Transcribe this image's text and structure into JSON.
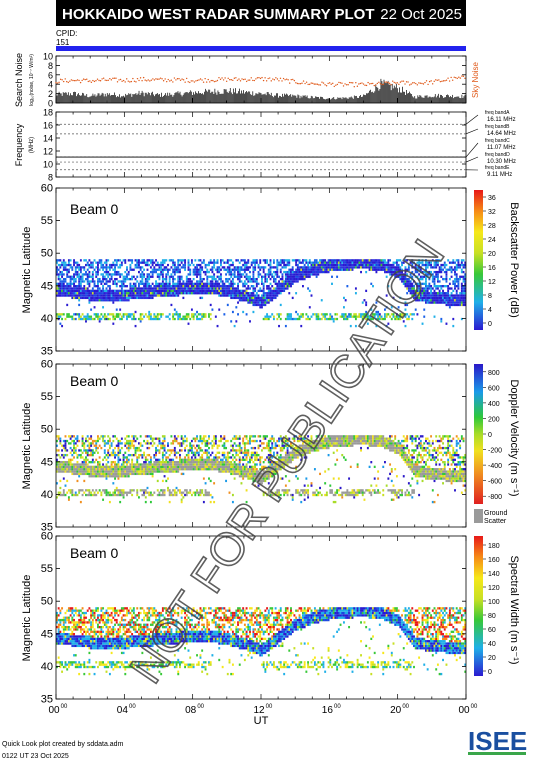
{
  "header": {
    "title": "HOKKAIDO WEST RADAR SUMMARY PLOT",
    "date": "22 Oct 2025",
    "cpid_label": "CPID:",
    "cpid_value": "151"
  },
  "footer": {
    "credit": "Quick Look plot created by sddata.adm",
    "created": "0122 UT 23 Oct 2025",
    "logo_text": "ISEE"
  },
  "watermark": "NOT FOR PUBLICATION",
  "colors": {
    "title_bar": "#000000",
    "cpid_bar": "#2222ee",
    "noise_line": "#e05a1a",
    "search_noise_fill": "#000000",
    "ground_scatter": "#9a9a9a",
    "logo_green": "#3aa64a",
    "logo_blue": "#1a4fa0"
  },
  "chart_data": [
    {
      "id": "search-noise",
      "type": "area",
      "ylabel": "Search Noise",
      "ylabel_sub": "log₁₀(noise, 10⁻⁷ W/m²)",
      "right_label": "Sky Noise",
      "ylim": [
        0,
        10
      ],
      "yticks": [
        0,
        2,
        4,
        6,
        8,
        10
      ],
      "xlim": [
        0,
        24
      ],
      "search_noise": [
        [
          0,
          1.8
        ],
        [
          1,
          2.0
        ],
        [
          2,
          1.5
        ],
        [
          3,
          1.9
        ],
        [
          4,
          1.6
        ],
        [
          5,
          2.1
        ],
        [
          6,
          1.7
        ],
        [
          7,
          1.9
        ],
        [
          8,
          2.2
        ],
        [
          9,
          2.4
        ],
        [
          10,
          2.6
        ],
        [
          11,
          2.3
        ],
        [
          12,
          2.0
        ],
        [
          13,
          1.6
        ],
        [
          14,
          1.5
        ],
        [
          15,
          1.2
        ],
        [
          16,
          1.0
        ],
        [
          17,
          1.1
        ],
        [
          18,
          1.4
        ],
        [
          19,
          4.0
        ],
        [
          20,
          3.2
        ],
        [
          21,
          1.3
        ],
        [
          22,
          1.6
        ],
        [
          23,
          1.5
        ],
        [
          24,
          1.4
        ]
      ],
      "sky_noise": [
        [
          0,
          4.6
        ],
        [
          1,
          4.8
        ],
        [
          2,
          4.7
        ],
        [
          3,
          4.9
        ],
        [
          4,
          4.8
        ],
        [
          5,
          5.0
        ],
        [
          6,
          4.9
        ],
        [
          7,
          4.9
        ],
        [
          8,
          4.8
        ],
        [
          9,
          4.9
        ],
        [
          10,
          5.0
        ],
        [
          11,
          5.0
        ],
        [
          12,
          5.1
        ],
        [
          13,
          5.0
        ],
        [
          14,
          4.5
        ],
        [
          15,
          4.1
        ],
        [
          16,
          4.0
        ],
        [
          17,
          3.9
        ],
        [
          18,
          3.9
        ],
        [
          19,
          4.0
        ],
        [
          20,
          4.3
        ],
        [
          21,
          4.2
        ],
        [
          22,
          4.4
        ],
        [
          23,
          5.0
        ],
        [
          24,
          5.4
        ]
      ]
    },
    {
      "id": "frequency",
      "type": "line",
      "ylabel": "Frequency",
      "ylabel_sub": "(MHz)",
      "ylim": [
        8,
        18
      ],
      "yticks": [
        8,
        10,
        12,
        14,
        16,
        18
      ],
      "xlim": [
        0,
        24
      ],
      "bands": [
        {
          "name": "freq bandA",
          "value": 16.11,
          "label": "16.11 MHz"
        },
        {
          "name": "freq bandB",
          "value": 14.64,
          "label": "14.64 MHz"
        },
        {
          "name": "freq bandC",
          "value": 11.07,
          "label": "11.07 MHz"
        },
        {
          "name": "freq bandD",
          "value": 10.3,
          "label": "10.30 MHz"
        },
        {
          "name": "freq bandE",
          "value": 9.11,
          "label": "9.11 MHz"
        }
      ]
    },
    {
      "id": "power",
      "type": "heatmap",
      "ylabel": "Magnetic Latitude",
      "beam_label": "Beam  0",
      "colorbar_label": "Backscatter Power (dB)",
      "ylim": [
        35,
        60
      ],
      "yticks": [
        35,
        40,
        45,
        50,
        55,
        60
      ],
      "xlim": [
        0,
        24
      ],
      "colorbar_ticks": [
        "0",
        "4",
        "8",
        "12",
        "16",
        "20",
        "24",
        "28",
        "32",
        "36"
      ],
      "colorbar_range": [
        0,
        36
      ]
    },
    {
      "id": "velocity",
      "type": "heatmap",
      "ylabel": "Magnetic Latitude",
      "beam_label": "Beam  0",
      "colorbar_label": "Doppler Velocity (m s⁻¹)",
      "ground_scatter_label": "Ground\nScatter",
      "ylim": [
        35,
        60
      ],
      "yticks": [
        35,
        40,
        45,
        50,
        55,
        60
      ],
      "xlim": [
        0,
        24
      ],
      "colorbar_ticks": [
        "-800",
        "-600",
        "-400",
        "-200",
        "0",
        "200",
        "400",
        "600",
        "800"
      ],
      "colorbar_range": [
        -900,
        900
      ]
    },
    {
      "id": "width",
      "type": "heatmap",
      "ylabel": "Magnetic Latitude",
      "beam_label": "Beam  0",
      "colorbar_label": "Spectral Width (m s⁻¹)",
      "ylim": [
        35,
        60
      ],
      "yticks": [
        35,
        40,
        45,
        50,
        55,
        60
      ],
      "xlim": [
        0,
        24
      ],
      "colorbar_ticks": [
        "0",
        "20",
        "40",
        "60",
        "80",
        "100",
        "120",
        "140",
        "160",
        "180"
      ],
      "colorbar_range": [
        0,
        190
      ]
    }
  ],
  "xaxis": {
    "label": "UT",
    "ticks": [
      {
        "hour": 0,
        "text": "00",
        "sup": "00"
      },
      {
        "hour": 4,
        "text": "04",
        "sup": "00"
      },
      {
        "hour": 8,
        "text": "08",
        "sup": "00"
      },
      {
        "hour": 12,
        "text": "12",
        "sup": "00"
      },
      {
        "hour": 16,
        "text": "16",
        "sup": "00"
      },
      {
        "hour": 20,
        "text": "20",
        "sup": "00"
      },
      {
        "hour": 24,
        "text": "00",
        "sup": "00"
      }
    ]
  },
  "scatter_profile": {
    "upper_edge_lat": 49,
    "lower_band_lat": 40.5,
    "arc": [
      [
        0,
        44.5
      ],
      [
        2,
        43.8
      ],
      [
        4,
        43.8
      ],
      [
        6,
        44.3
      ],
      [
        8,
        44.8
      ],
      [
        9,
        44.8
      ],
      [
        10,
        44.3
      ],
      [
        11,
        43.6
      ],
      [
        12,
        42.6
      ],
      [
        13,
        44.6
      ],
      [
        14,
        46.6
      ],
      [
        15,
        47.6
      ],
      [
        16,
        48.2
      ],
      [
        17,
        48.5
      ],
      [
        18,
        48.6
      ],
      [
        19,
        48.3
      ],
      [
        20,
        47.2
      ],
      [
        20.5,
        45.4
      ],
      [
        21,
        43.8
      ],
      [
        22,
        43.3
      ],
      [
        23,
        43.1
      ],
      [
        24,
        43.0
      ]
    ]
  }
}
